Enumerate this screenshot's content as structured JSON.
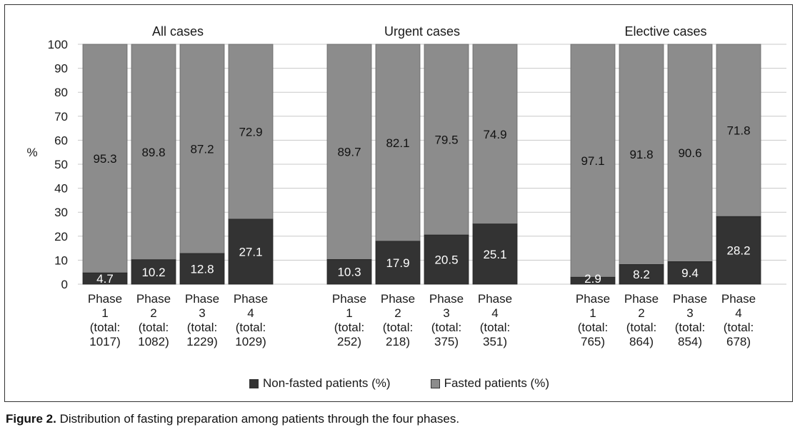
{
  "chart_data": {
    "type": "bar",
    "stacked": true,
    "ylabel": "%",
    "ylim": [
      0,
      100
    ],
    "yticks": [
      0,
      10,
      20,
      30,
      40,
      50,
      60,
      70,
      80,
      90,
      100
    ],
    "grid": true,
    "legend_position": "bottom",
    "series_colors": {
      "non_fasted": "#333333",
      "fasted": "#8c8c8c"
    },
    "legend": [
      {
        "label": "Non-fasted patients (%)",
        "color": "#333333"
      },
      {
        "label": "Fasted patients (%)",
        "color": "#8c8c8c"
      }
    ],
    "groups": [
      {
        "title": "All cases",
        "bars": [
          {
            "line1": "Phase",
            "line2": "1",
            "line3": "(total:",
            "line4": "1017)",
            "non_fasted": 4.7,
            "fasted": 95.3
          },
          {
            "line1": "Phase",
            "line2": "2",
            "line3": "(total:",
            "line4": "1082)",
            "non_fasted": 10.2,
            "fasted": 89.8
          },
          {
            "line1": "Phase",
            "line2": "3",
            "line3": "(total:",
            "line4": "1229)",
            "non_fasted": 12.8,
            "fasted": 87.2
          },
          {
            "line1": "Phase",
            "line2": "4",
            "line3": "(total:",
            "line4": "1029)",
            "non_fasted": 27.1,
            "fasted": 72.9
          }
        ]
      },
      {
        "title": "Urgent cases",
        "bars": [
          {
            "line1": "Phase",
            "line2": "1",
            "line3": "(total:",
            "line4": "252)",
            "non_fasted": 10.3,
            "fasted": 89.7
          },
          {
            "line1": "Phase",
            "line2": "2",
            "line3": "(total:",
            "line4": "218)",
            "non_fasted": 17.9,
            "fasted": 82.1
          },
          {
            "line1": "Phase",
            "line2": "3",
            "line3": "(total:",
            "line4": "375)",
            "non_fasted": 20.5,
            "fasted": 79.5
          },
          {
            "line1": "Phase",
            "line2": "4",
            "line3": "(total:",
            "line4": "351)",
            "non_fasted": 25.1,
            "fasted": 74.9
          }
        ]
      },
      {
        "title": "Elective cases",
        "bars": [
          {
            "line1": "Phase",
            "line2": "1",
            "line3": "(total:",
            "line4": "765)",
            "non_fasted": 2.9,
            "fasted": 97.1
          },
          {
            "line1": "Phase",
            "line2": "2",
            "line3": "(total:",
            "line4": "864)",
            "non_fasted": 8.2,
            "fasted": 91.8
          },
          {
            "line1": "Phase",
            "line2": "3",
            "line3": "(total:",
            "line4": "854)",
            "non_fasted": 9.4,
            "fasted": 90.6
          },
          {
            "line1": "Phase",
            "line2": "4",
            "line3": "(total:",
            "line4": "678)",
            "non_fasted": 28.2,
            "fasted": 71.8
          }
        ]
      }
    ]
  },
  "caption": {
    "label": "Figure 2.",
    "text": " Distribution of fasting preparation among patients through the four phases."
  }
}
